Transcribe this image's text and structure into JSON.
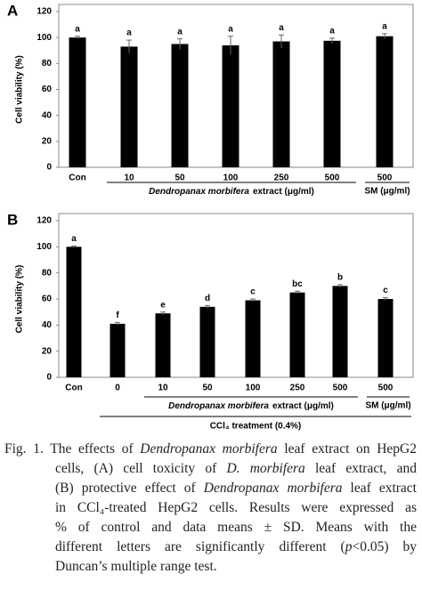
{
  "chart_data": [
    {
      "type": "bar",
      "panel": "A",
      "ylabel": "Cell viability (%)",
      "categories": [
        "Con",
        "10",
        "50",
        "100",
        "250",
        "500",
        "500"
      ],
      "values": [
        100,
        93,
        95,
        94,
        97,
        97.5,
        101
      ],
      "errors": [
        1,
        5,
        4,
        7,
        5,
        2,
        2
      ],
      "letters": [
        "a",
        "a",
        "a",
        "a",
        "a",
        "a",
        "a"
      ],
      "color": "#000000",
      "ylim": [
        0,
        120
      ],
      "yticks": [
        0,
        20,
        40,
        60,
        80,
        100,
        120
      ],
      "annotations": {
        "extract_italic": "Dendropanax morbifera",
        "extract_rest": "extract (μg/ml)",
        "sm": "SM (μg/ml)"
      }
    },
    {
      "type": "bar",
      "panel": "B",
      "ylabel": "Cell viability (%)",
      "categories": [
        "Con",
        "0",
        "10",
        "50",
        "100",
        "250",
        "500",
        "500"
      ],
      "values": [
        100,
        41,
        49,
        54,
        59,
        65,
        70,
        60
      ],
      "errors": [
        0.5,
        1,
        1,
        1,
        1,
        1,
        1,
        1
      ],
      "letters": [
        "a",
        "f",
        "e",
        "d",
        "c",
        "bc",
        "b",
        "c"
      ],
      "color": "#000000",
      "ylim": [
        0,
        120
      ],
      "yticks": [
        0,
        20,
        40,
        60,
        80,
        100,
        120
      ],
      "annotations": {
        "extract_italic": "Dendropanax morbifera",
        "extract_rest": "extract (μg/ml)",
        "sm": "SM (μg/ml)",
        "treatment": "CCl₄ treatment (0.4%)"
      }
    }
  ],
  "caption": [
    [
      {
        "text": "Fig. 1. The effects of "
      },
      {
        "text": "Dendropanax morbifera",
        "italic": true
      },
      {
        "text": " leaf extract on HepG2"
      }
    ],
    [
      {
        "text": "cells, (A) cell toxicity of "
      },
      {
        "text": "D. morbifera",
        "italic": true
      },
      {
        "text": " leaf extract, and"
      }
    ],
    [
      {
        "text": "(B) protective effect of "
      },
      {
        "text": "Dendropanax morbifera",
        "italic": true
      },
      {
        "text": " leaf extract"
      }
    ],
    [
      {
        "text": "in CCl₄-treated HepG2 cells. Results were expressed as"
      }
    ],
    [
      {
        "text": "% of control and data means ± SD. Means with the"
      }
    ],
    [
      {
        "text": "different letters are significantly different ("
      },
      {
        "text": "p",
        "italic": true
      },
      {
        "text": "<0.05) by"
      }
    ],
    [
      {
        "text": "Duncan’s multiple range test."
      }
    ]
  ]
}
